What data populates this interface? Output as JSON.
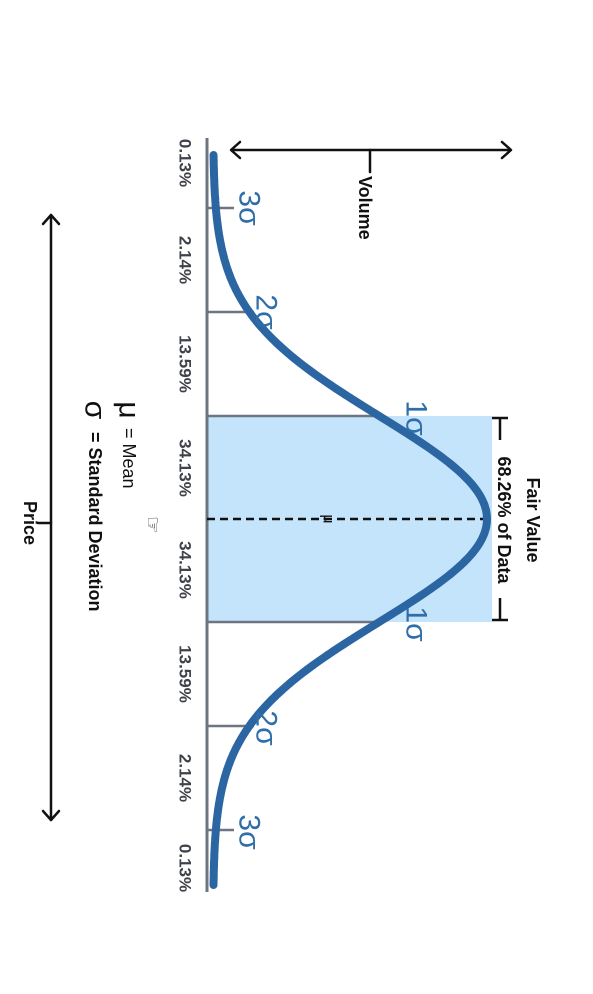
{
  "volume_label": "Volume",
  "price_label": "Price",
  "fair_value": {
    "title": "Fair Value",
    "subtitle": "68.26% of Data"
  },
  "percentages": [
    "0.13%",
    "2.14%",
    "13.59%",
    "34.13%",
    "34.13%",
    "13.59%",
    "2.14%",
    "0.13%"
  ],
  "sigma_labels": {
    "left": [
      "3σ",
      "2σ",
      "1σ"
    ],
    "right": [
      "1σ",
      "2σ",
      "3σ"
    ]
  },
  "mean_marker": "μ",
  "legend": {
    "mu_symbol": "μ",
    "mu_text": "= Mean",
    "sigma_symbol": "σ",
    "sigma_text": "= Standard Deviation"
  },
  "pointer_glyph": "☞",
  "colors": {
    "curve": "#2b66a3",
    "fair_value_band": "#c4e4fb",
    "sigma_text": "#2f6ea8",
    "baseline": "#6c7580"
  }
}
